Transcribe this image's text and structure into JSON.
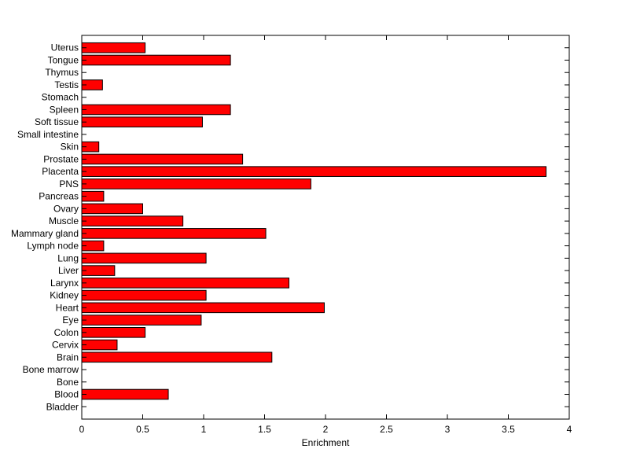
{
  "chart_data": {
    "type": "bar",
    "orientation": "horizontal",
    "title": "",
    "xlabel": "Enrichment",
    "ylabel": "",
    "xlim": [
      0,
      4
    ],
    "xticks": [
      0,
      0.5,
      1,
      1.5,
      2,
      2.5,
      3,
      3.5,
      4
    ],
    "xtick_labels": [
      "0",
      "0.5",
      "1",
      "1.5",
      "2",
      "2.5",
      "3",
      "3.5",
      "4"
    ],
    "grid": false,
    "bar_color": "#ff0000",
    "bar_edge_color": "#000000",
    "categories": [
      "Bladder",
      "Blood",
      "Bone",
      "Bone marrow",
      "Brain",
      "Cervix",
      "Colon",
      "Eye",
      "Heart",
      "Kidney",
      "Larynx",
      "Liver",
      "Lung",
      "Lymph node",
      "Mammary gland",
      "Muscle",
      "Ovary",
      "Pancreas",
      "PNS",
      "Placenta",
      "Prostate",
      "Skin",
      "Small intestine",
      "Soft tissue",
      "Spleen",
      "Stomach",
      "Testis",
      "Thymus",
      "Tongue",
      "Uterus"
    ],
    "values": [
      0,
      0.71,
      0,
      0,
      1.56,
      0.29,
      0.52,
      0.98,
      1.99,
      1.02,
      1.7,
      0.27,
      1.02,
      0.18,
      1.51,
      0.83,
      0.5,
      0.18,
      1.88,
      3.81,
      1.32,
      0.14,
      0,
      0.99,
      1.22,
      0,
      0.17,
      0,
      1.22,
      0.52
    ]
  }
}
